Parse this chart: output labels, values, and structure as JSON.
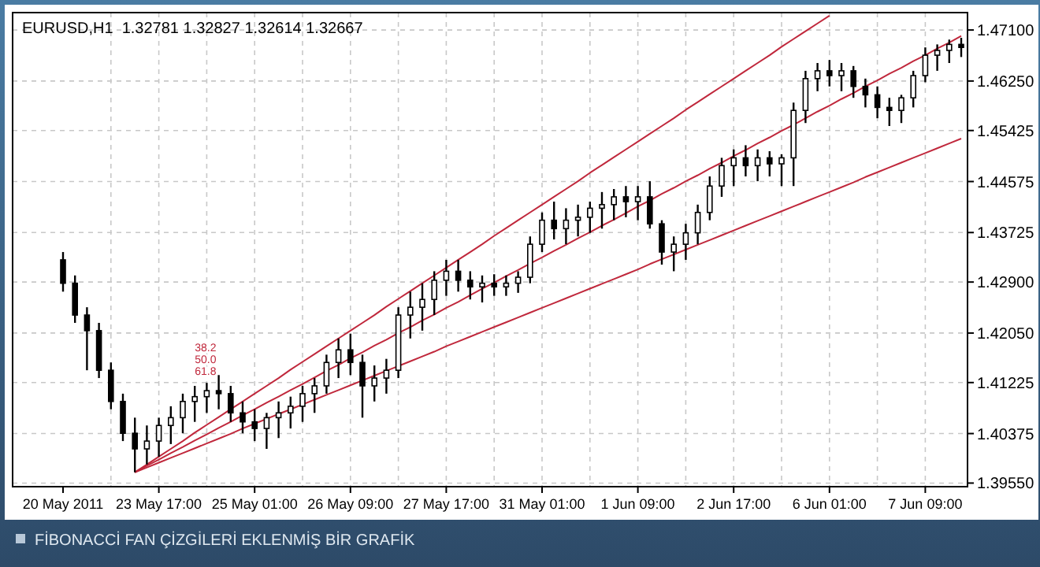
{
  "chart_data": {
    "type": "candlestick",
    "title": "EURUSD,H1  1.32781 1.32827 1.32614 1.32667",
    "annotations": [
      "38.2",
      "50.0",
      "61.8",
      "FİBONACCİ FAN ÇİZGİLERİ EKLENMİŞ BİR GRAFİK"
    ],
    "categories": [
      "20 May 2011",
      null,
      null,
      null,
      null,
      null,
      null,
      null,
      "23 May 17:00",
      null,
      null,
      null,
      null,
      null,
      null,
      null,
      "25 May 01:00",
      null,
      null,
      null,
      null,
      null,
      null,
      null,
      "26 May 09:00",
      null,
      null,
      null,
      null,
      null,
      null,
      null,
      "27 May 17:00",
      null,
      null,
      null,
      null,
      null,
      null,
      null,
      "31 May 01:00",
      null,
      null,
      null,
      null,
      null,
      null,
      null,
      "1 Jun 09:00",
      null,
      null,
      null,
      null,
      null,
      null,
      null,
      "2 Jun 17:00",
      null,
      null,
      null,
      null,
      null,
      null,
      null,
      "6 Jun 01:00",
      null,
      null,
      null,
      null,
      null,
      null,
      null,
      "7 Jun 09:00",
      null,
      null,
      null
    ],
    "ohlc": [
      [
        1.4327,
        1.434,
        1.4274,
        1.4288
      ],
      [
        1.4288,
        1.4301,
        1.4222,
        1.4235
      ],
      [
        1.4235,
        1.4248,
        1.4143,
        1.4209
      ],
      [
        1.4209,
        1.4222,
        1.413,
        1.4143
      ],
      [
        1.4143,
        1.4156,
        1.4078,
        1.4091
      ],
      [
        1.4091,
        1.4104,
        1.4025,
        1.4038
      ],
      [
        1.4038,
        1.4064,
        1.3973,
        1.4012
      ],
      [
        1.4012,
        1.4051,
        1.3986,
        1.4025
      ],
      [
        1.4025,
        1.4064,
        1.3999,
        1.4051
      ],
      [
        1.4051,
        1.4083,
        1.402,
        1.4064
      ],
      [
        1.4064,
        1.4104,
        1.4038,
        1.4091
      ],
      [
        1.4091,
        1.4117,
        1.4057,
        1.4099
      ],
      [
        1.4099,
        1.4122,
        1.4072,
        1.4109
      ],
      [
        1.4109,
        1.4135,
        1.4078,
        1.4104
      ],
      [
        1.4104,
        1.4117,
        1.4057,
        1.4072
      ],
      [
        1.4072,
        1.4091,
        1.4038,
        1.4057
      ],
      [
        1.4057,
        1.4078,
        1.4025,
        1.4046
      ],
      [
        1.4046,
        1.4072,
        1.4012,
        1.4064
      ],
      [
        1.4064,
        1.4091,
        1.403,
        1.4072
      ],
      [
        1.4072,
        1.4099,
        1.4046,
        1.4083
      ],
      [
        1.4083,
        1.4117,
        1.4057,
        1.4104
      ],
      [
        1.4104,
        1.413,
        1.4072,
        1.4117
      ],
      [
        1.4117,
        1.4169,
        1.4104,
        1.4156
      ],
      [
        1.4156,
        1.4196,
        1.413,
        1.4177
      ],
      [
        1.4177,
        1.4204,
        1.4135,
        1.4156
      ],
      [
        1.4156,
        1.4169,
        1.4064,
        1.4117
      ],
      [
        1.4117,
        1.4151,
        1.4091,
        1.413
      ],
      [
        1.413,
        1.4162,
        1.4104,
        1.4143
      ],
      [
        1.4143,
        1.4248,
        1.413,
        1.4235
      ],
      [
        1.4235,
        1.4274,
        1.4196,
        1.4248
      ],
      [
        1.4248,
        1.4288,
        1.4209,
        1.4261
      ],
      [
        1.4261,
        1.4308,
        1.4235,
        1.4293
      ],
      [
        1.4293,
        1.4327,
        1.4267,
        1.4308
      ],
      [
        1.4308,
        1.4327,
        1.4274,
        1.4293
      ],
      [
        1.4293,
        1.4308,
        1.4261,
        1.4282
      ],
      [
        1.4282,
        1.4301,
        1.4256,
        1.4288
      ],
      [
        1.4288,
        1.4303,
        1.4267,
        1.4282
      ],
      [
        1.4282,
        1.4301,
        1.4267,
        1.4288
      ],
      [
        1.4288,
        1.4308,
        1.4272,
        1.4298
      ],
      [
        1.4298,
        1.4366,
        1.4288,
        1.4353
      ],
      [
        1.4353,
        1.4406,
        1.434,
        1.4393
      ],
      [
        1.4393,
        1.4424,
        1.4361,
        1.4379
      ],
      [
        1.4379,
        1.4413,
        1.4353,
        1.4393
      ],
      [
        1.4393,
        1.4419,
        1.4366,
        1.4398
      ],
      [
        1.4398,
        1.4424,
        1.4372,
        1.4413
      ],
      [
        1.4413,
        1.444,
        1.4379,
        1.4419
      ],
      [
        1.4419,
        1.4445,
        1.4393,
        1.4432
      ],
      [
        1.4432,
        1.445,
        1.4398,
        1.4424
      ],
      [
        1.4424,
        1.445,
        1.4393,
        1.4432
      ],
      [
        1.4432,
        1.4458,
        1.4379,
        1.4387
      ],
      [
        1.4387,
        1.4393,
        1.4319,
        1.434
      ],
      [
        1.434,
        1.4366,
        1.4308,
        1.4353
      ],
      [
        1.4353,
        1.4387,
        1.4327,
        1.4372
      ],
      [
        1.4372,
        1.4419,
        1.4353,
        1.4406
      ],
      [
        1.4406,
        1.4466,
        1.4393,
        1.445
      ],
      [
        1.445,
        1.4497,
        1.4432,
        1.4484
      ],
      [
        1.4484,
        1.4511,
        1.445,
        1.4497
      ],
      [
        1.4497,
        1.4518,
        1.4466,
        1.4484
      ],
      [
        1.4484,
        1.4511,
        1.4458,
        1.4497
      ],
      [
        1.4497,
        1.4508,
        1.4466,
        1.4487
      ],
      [
        1.4487,
        1.4503,
        1.445,
        1.4497
      ],
      [
        1.4497,
        1.4589,
        1.445,
        1.4576
      ],
      [
        1.4576,
        1.4642,
        1.4555,
        1.4629
      ],
      [
        1.4629,
        1.4655,
        1.4608,
        1.4642
      ],
      [
        1.4642,
        1.466,
        1.4616,
        1.4634
      ],
      [
        1.4634,
        1.4655,
        1.4608,
        1.4642
      ],
      [
        1.4642,
        1.465,
        1.4597,
        1.4616
      ],
      [
        1.4616,
        1.4629,
        1.4581,
        1.4602
      ],
      [
        1.4602,
        1.4616,
        1.4563,
        1.4581
      ],
      [
        1.4581,
        1.4597,
        1.455,
        1.4576
      ],
      [
        1.4576,
        1.4602,
        1.4555,
        1.4597
      ],
      [
        1.4597,
        1.4642,
        1.4581,
        1.4634
      ],
      [
        1.4634,
        1.4681,
        1.4623,
        1.4668
      ],
      [
        1.4668,
        1.4686,
        1.4642,
        1.4676
      ],
      [
        1.4676,
        1.4694,
        1.4655,
        1.4686
      ],
      [
        1.4686,
        1.4697,
        1.4665,
        1.4681
      ]
    ],
    "series": [
      {
        "type": "line",
        "color": "#c0283c",
        "values": [
          null,
          null,
          null,
          null,
          null,
          null,
          1.3973,
          1.3986,
          1.3999,
          1.4012,
          1.4025,
          1.4039,
          1.4052,
          1.4065,
          1.4078,
          1.4091,
          1.4104,
          1.4117,
          1.413,
          1.4144,
          1.4157,
          1.417,
          1.4183,
          1.4196,
          1.4209,
          1.4222,
          1.4235,
          1.4249,
          1.4262,
          1.4275,
          1.4288,
          1.4301,
          1.4314,
          1.4327,
          1.434,
          1.4353,
          1.4367,
          1.438,
          1.4393,
          1.4406,
          1.4419,
          1.4432,
          1.4445,
          1.4458,
          1.4472,
          1.4485,
          1.4498,
          1.4511,
          1.4524,
          1.4537,
          1.455,
          1.4563,
          1.4577,
          1.459,
          1.4603,
          1.4616,
          1.4629,
          1.4642,
          1.4655,
          1.4668,
          1.4682,
          1.4695,
          1.4708,
          1.4721,
          1.4734,
          null,
          null,
          null,
          null,
          null,
          null,
          null,
          null,
          null,
          null,
          null
        ]
      },
      {
        "type": "line",
        "color": "#c0283c",
        "values": [
          null,
          null,
          null,
          null,
          null,
          null,
          1.3973,
          1.3984,
          1.3994,
          1.4005,
          1.4015,
          1.4026,
          1.4036,
          1.4047,
          1.4057,
          1.4068,
          1.4078,
          1.4089,
          1.4099,
          1.411,
          1.412,
          1.4131,
          1.4142,
          1.4152,
          1.4163,
          1.4173,
          1.4184,
          1.4194,
          1.4205,
          1.4215,
          1.4226,
          1.4236,
          1.4247,
          1.4257,
          1.4268,
          1.4279,
          1.4289,
          1.43,
          1.431,
          1.4321,
          1.4331,
          1.4342,
          1.4352,
          1.4363,
          1.4373,
          1.4384,
          1.4394,
          1.4405,
          1.4416,
          1.4426,
          1.4437,
          1.4447,
          1.4458,
          1.4468,
          1.4479,
          1.4489,
          1.45,
          1.451,
          1.4521,
          1.4531,
          1.4542,
          1.4552,
          1.4563,
          1.4574,
          1.4584,
          1.4595,
          1.4605,
          1.4616,
          1.4626,
          1.4637,
          1.4647,
          1.4658,
          1.4668,
          1.4679,
          1.4689,
          1.47
        ]
      },
      {
        "type": "line",
        "color": "#c0283c",
        "values": [
          null,
          null,
          null,
          null,
          null,
          null,
          1.3973,
          1.3981,
          1.3989,
          1.3997,
          1.4005,
          1.4013,
          1.4021,
          1.4029,
          1.4037,
          1.4046,
          1.4054,
          1.4062,
          1.407,
          1.4078,
          1.4086,
          1.4094,
          1.4102,
          1.411,
          1.4118,
          1.4126,
          1.4134,
          1.4142,
          1.415,
          1.4158,
          1.4166,
          1.4174,
          1.4183,
          1.4191,
          1.4199,
          1.4207,
          1.4215,
          1.4223,
          1.4231,
          1.4239,
          1.4247,
          1.4255,
          1.4263,
          1.4271,
          1.4279,
          1.4287,
          1.4295,
          1.4303,
          1.4311,
          1.432,
          1.4328,
          1.4336,
          1.4344,
          1.4352,
          1.436,
          1.4368,
          1.4376,
          1.4384,
          1.4392,
          1.44,
          1.4408,
          1.4416,
          1.4424,
          1.4432,
          1.444,
          1.4448,
          1.4456,
          1.4465,
          1.4473,
          1.4481,
          1.4489,
          1.4497,
          1.4505,
          1.4513,
          1.4521,
          1.4529
        ]
      }
    ],
    "ylim": [
      1.3949,
      1.4739
    ],
    "yticks": [
      {
        "value": 1.3955,
        "label": "1.39550"
      },
      {
        "value": 1.40375,
        "label": "1.40375"
      },
      {
        "value": 1.41225,
        "label": "1.41225"
      },
      {
        "value": 1.4205,
        "label": "1.42050"
      },
      {
        "value": 1.429,
        "label": "1.42900"
      },
      {
        "value": 1.43725,
        "label": "1.43725"
      },
      {
        "value": 1.44575,
        "label": "1.44575"
      },
      {
        "value": 1.45425,
        "label": "1.45425"
      },
      {
        "value": 1.4625,
        "label": "1.46250"
      },
      {
        "value": 1.471,
        "label": "1.47100"
      }
    ],
    "grid": true,
    "line_style": "solid",
    "marker": "none"
  }
}
